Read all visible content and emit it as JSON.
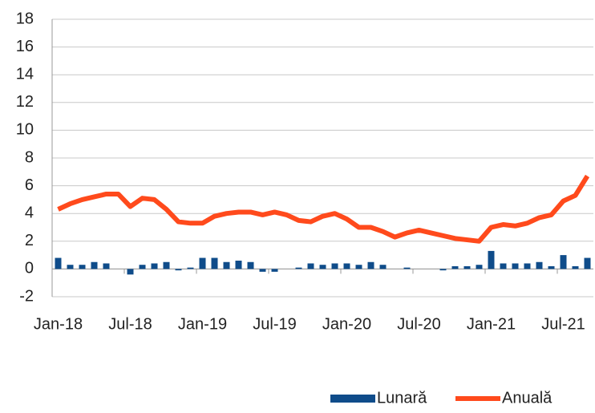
{
  "chart_data": {
    "type": "combo",
    "categories": [
      "Jan-18",
      null,
      null,
      null,
      null,
      null,
      "Jul-18",
      null,
      null,
      null,
      null,
      null,
      "Jan-19",
      null,
      null,
      null,
      null,
      null,
      "Jul-19",
      null,
      null,
      null,
      null,
      null,
      "Jan-20",
      null,
      null,
      null,
      null,
      null,
      "Jul-20",
      null,
      null,
      null,
      null,
      null,
      "Jan-21",
      null,
      null,
      null,
      null,
      null,
      "Jul-21",
      null,
      null
    ],
    "series": [
      {
        "name": "Lunară",
        "type": "bar",
        "color": "#0f4c8a",
        "values": [
          0.8,
          0.3,
          0.3,
          0.5,
          0.4,
          0.0,
          -0.4,
          0.3,
          0.4,
          0.5,
          -0.1,
          0.1,
          0.8,
          0.8,
          0.5,
          0.6,
          0.5,
          -0.2,
          -0.2,
          0.0,
          0.1,
          0.4,
          0.3,
          0.4,
          0.4,
          0.3,
          0.5,
          0.3,
          0.0,
          0.1,
          0.0,
          0.0,
          -0.1,
          0.2,
          0.2,
          0.3,
          1.3,
          0.4,
          0.4,
          0.4,
          0.5,
          0.2,
          1.0,
          0.2,
          0.8
        ]
      },
      {
        "name": "Anuală",
        "type": "line",
        "color": "#ff4a1c",
        "values": [
          4.3,
          4.7,
          5.0,
          5.2,
          5.4,
          5.4,
          4.5,
          5.1,
          5.0,
          4.3,
          3.4,
          3.3,
          3.3,
          3.8,
          4.0,
          4.1,
          4.1,
          3.9,
          4.1,
          3.9,
          3.5,
          3.4,
          3.8,
          4.0,
          3.6,
          3.0,
          3.0,
          2.7,
          2.3,
          2.6,
          2.8,
          2.6,
          2.4,
          2.2,
          2.1,
          2.0,
          3.0,
          3.2,
          3.1,
          3.3,
          3.7,
          3.9,
          4.9,
          5.3,
          6.7
        ]
      }
    ],
    "ylim": [
      -2,
      18
    ],
    "yticks": [
      -2,
      0,
      2,
      4,
      6,
      8,
      10,
      12,
      14,
      16,
      18
    ],
    "grid": true,
    "legend": "bottom-right"
  }
}
